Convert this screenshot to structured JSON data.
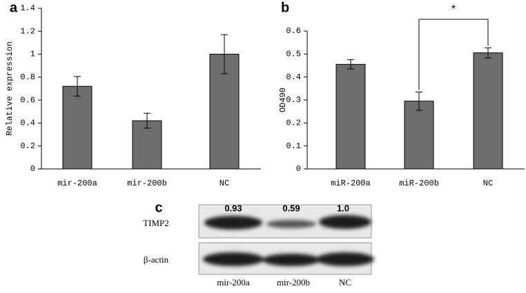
{
  "chart_data": [
    {
      "type": "bar",
      "panel": "a",
      "y_label": "Relative expression",
      "categories": [
        "mir-200a",
        "mir-200b",
        "NC"
      ],
      "values": [
        0.72,
        0.42,
        1.0
      ],
      "errors": [
        0.085,
        0.065,
        0.17
      ],
      "color": "#6e6e6e",
      "ylim": [
        0,
        1.4
      ],
      "yticks": [
        0,
        0.2,
        0.4,
        0.6,
        0.8,
        1,
        1.2,
        1.4
      ]
    },
    {
      "type": "bar",
      "panel": "b",
      "y_label": "OD490",
      "categories": [
        "miR-200a",
        "miR-200b",
        "NC"
      ],
      "values": [
        0.455,
        0.295,
        0.505
      ],
      "errors": [
        0.02,
        0.04,
        0.022
      ],
      "color": "#6e6e6e",
      "ylim": [
        0,
        0.6
      ],
      "yticks": [
        0,
        0.1,
        0.2,
        0.3,
        0.4,
        0.5,
        0.6
      ],
      "annotation": "*"
    }
  ],
  "panel_c": {
    "panel": "c",
    "rows": [
      "TIMP2",
      "β-actin"
    ],
    "quantities": [
      "0.93",
      "0.59",
      "1.0"
    ],
    "columns": [
      "mir-200a",
      "mir-200b",
      "NC"
    ]
  }
}
